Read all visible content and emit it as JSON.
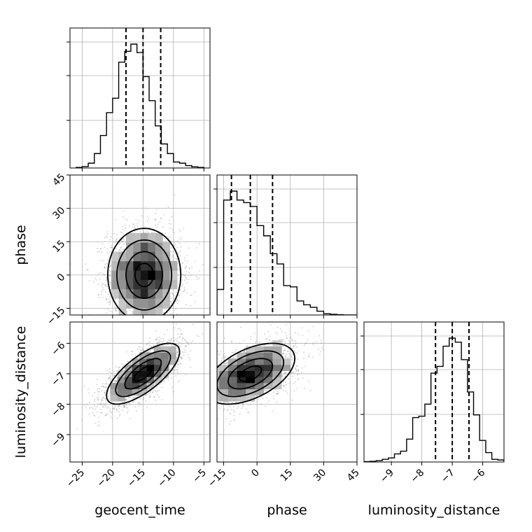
{
  "chart_data": {
    "type": "corner",
    "parameters": [
      {
        "key": "geocent_time",
        "label": "geocent_time",
        "range": [
          -27,
          -4
        ],
        "ticks": [
          -25,
          -20,
          -15,
          -10,
          -5
        ],
        "tick_labels": [
          "−25",
          "−20",
          "−15",
          "−10",
          "−5"
        ],
        "quantiles": [
          -17.8,
          -15.0,
          -12.1
        ],
        "hist": {
          "bins": [
            -26,
            -25,
            -24,
            -23,
            -22,
            -21,
            -20,
            -19,
            -18,
            -17,
            -16,
            -15,
            -14,
            -13,
            -12,
            -11,
            -10,
            -9,
            -8,
            -7,
            -6,
            -5
          ],
          "values": [
            0.005,
            0.012,
            0.04,
            0.12,
            0.27,
            0.46,
            0.58,
            0.88,
            0.97,
            1.03,
            0.96,
            0.76,
            0.56,
            0.35,
            0.2,
            0.12,
            0.05,
            0.04,
            0.02,
            0.01,
            0.005
          ]
        }
      },
      {
        "key": "phase",
        "label": "phase",
        "range": [
          -18,
          45
        ],
        "ticks": [
          -15,
          0,
          15,
          30,
          45
        ],
        "tick_labels": [
          "−15",
          "0",
          "15",
          "30",
          "45"
        ],
        "quantiles": [
          -11.5,
          -3.0,
          7.0
        ],
        "hist": {
          "bins": [
            -18,
            -15,
            -12,
            -9,
            -6,
            -3,
            0,
            3,
            6,
            9,
            12,
            15,
            18,
            21,
            24,
            27,
            30,
            33,
            36,
            39,
            42,
            45
          ],
          "values": [
            0.2,
            0.9,
            0.97,
            0.9,
            0.88,
            0.85,
            0.7,
            0.62,
            0.48,
            0.4,
            0.23,
            0.22,
            0.11,
            0.08,
            0.06,
            0.03,
            0.01,
            0.005,
            0.002,
            0.0,
            0.0
          ]
        }
      },
      {
        "key": "luminosity_distance",
        "label": "luminosity_distance",
        "range": [
          -9.9,
          -5.3
        ],
        "ticks": [
          -9,
          -8,
          -7,
          -6
        ],
        "tick_labels": [
          "−9",
          "−8",
          "−7",
          "−6"
        ],
        "quantiles": [
          -7.55,
          -7.0,
          -6.45
        ],
        "hist": {
          "bins": [
            -9.9,
            -9.7,
            -9.5,
            -9.3,
            -9.1,
            -8.9,
            -8.7,
            -8.5,
            -8.3,
            -8.1,
            -7.9,
            -7.7,
            -7.5,
            -7.3,
            -7.1,
            -6.9,
            -6.7,
            -6.5,
            -6.3,
            -6.1,
            -5.9,
            -5.7,
            -5.5,
            -5.3
          ],
          "values": [
            0.003,
            0.005,
            0.01,
            0.02,
            0.03,
            0.06,
            0.08,
            0.17,
            0.33,
            0.34,
            0.43,
            0.66,
            0.71,
            0.86,
            0.92,
            0.89,
            0.76,
            0.52,
            0.35,
            0.16,
            0.07,
            0.02,
            0.015
          ]
        }
      }
    ],
    "pairs": [
      {
        "x": "geocent_time",
        "y": "phase",
        "mean": [
          -14.8,
          0.0
        ],
        "sd": [
          3.0,
          10.5
        ],
        "corr": 0.0
      },
      {
        "x": "geocent_time",
        "y": "luminosity_distance",
        "mean": [
          -15.0,
          -7.0
        ],
        "sd": [
          3.0,
          0.5
        ],
        "corr": 0.72
      },
      {
        "x": "phase",
        "y": "luminosity_distance",
        "mean": [
          -3.0,
          -7.0
        ],
        "sd": [
          10.0,
          0.5
        ],
        "corr": 0.5
      }
    ],
    "grid": true,
    "quantile_line_style": "dashed"
  }
}
